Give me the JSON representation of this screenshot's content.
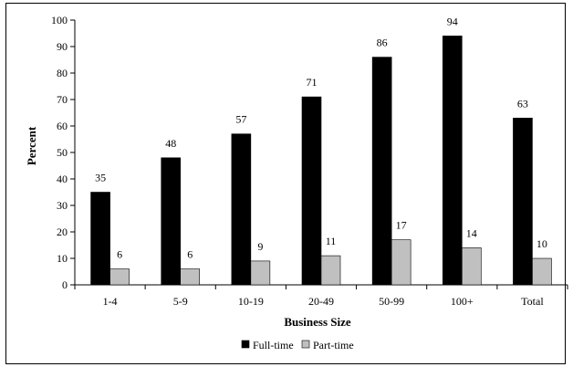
{
  "chart_data": {
    "type": "bar",
    "categories": [
      "1-4",
      "5-9",
      "10-19",
      "20-49",
      "50-99",
      "100+",
      "Total"
    ],
    "series": [
      {
        "name": "Full-time",
        "values": [
          35,
          48,
          57,
          71,
          86,
          94,
          63
        ],
        "color": "#000000"
      },
      {
        "name": "Part-time",
        "values": [
          6,
          6,
          9,
          11,
          17,
          14,
          10
        ],
        "color": "#c0c0c0"
      }
    ],
    "xlabel": "Business Size",
    "ylabel": "Percent",
    "ylim": [
      0,
      100
    ],
    "yticks": [
      0,
      10,
      20,
      30,
      40,
      50,
      60,
      70,
      80,
      90,
      100
    ],
    "grid": false,
    "legend_position": "bottom",
    "data_labels": true
  }
}
